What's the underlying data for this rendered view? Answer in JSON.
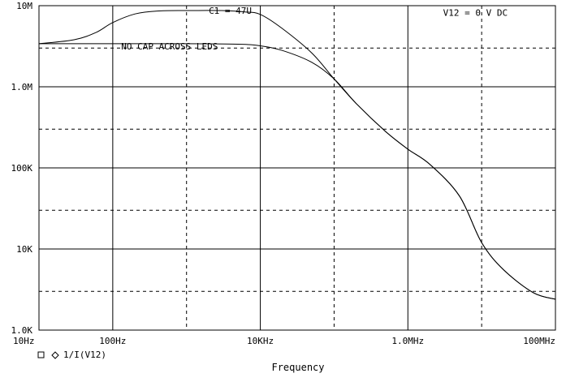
{
  "chart_data": {
    "type": "line",
    "title": "",
    "xlabel": "Frequency",
    "ylabel": "",
    "x_scale": "log",
    "y_scale": "log",
    "xlim": [
      10,
      100000000
    ],
    "ylim": [
      1000,
      10000000
    ],
    "grid": true,
    "x_ticks": [
      {
        "value": 10,
        "label": "10Hz"
      },
      {
        "value": 100,
        "label": "100Hz"
      },
      {
        "value": 10000,
        "label": "10KHz"
      },
      {
        "value": 1000000,
        "label": "1.0MHz"
      },
      {
        "value": 100000000,
        "label": "100MHz"
      }
    ],
    "y_ticks": [
      {
        "value": 1000,
        "label": "1.0K"
      },
      {
        "value": 10000,
        "label": "10K"
      },
      {
        "value": 100000,
        "label": "100K"
      },
      {
        "value": 1000000,
        "label": "1.0M"
      },
      {
        "value": 10000000,
        "label": "10M"
      }
    ],
    "annotations": [
      {
        "text": "C1 = 47U",
        "x": 2000,
        "y": 7900000
      },
      {
        "text": "V12 = 0 V DC",
        "x": 3000000,
        "y": 7500000
      },
      {
        "text": "NO CAP ACROSS LEDS",
        "x": 130,
        "y": 2900000
      }
    ],
    "legend": {
      "text": "1/I(V12)",
      "position": "bottom-left"
    },
    "series": [
      {
        "label": "C1 = 47U",
        "x": [
          10,
          30,
          60,
          100,
          200,
          400,
          1000,
          3000,
          6000,
          10000,
          20000,
          50000,
          100000,
          200000,
          500000,
          1000000,
          2000000,
          5000000,
          10000000,
          20000000,
          50000000,
          100000000
        ],
        "y": [
          3400000,
          3800000,
          4700000,
          6200000,
          7900000,
          8600000,
          8700000,
          8700000,
          8400000,
          7800000,
          5200000,
          2600000,
          1250000,
          620000,
          280000,
          170000,
          110000,
          45000,
          12000,
          5500,
          2900,
          2400
        ]
      },
      {
        "label": "NO CAP ACROSS LEDS",
        "x": [
          10,
          100,
          1000,
          5000,
          10000,
          20000,
          50000,
          100000,
          200000,
          500000,
          1000000,
          2000000,
          5000000,
          10000000,
          20000000,
          50000000,
          100000000
        ],
        "y": [
          3400000,
          3400000,
          3400000,
          3350000,
          3200000,
          2800000,
          2000000,
          1250000,
          620000,
          280000,
          170000,
          110000,
          45000,
          12000,
          5500,
          2900,
          2400
        ]
      }
    ]
  }
}
